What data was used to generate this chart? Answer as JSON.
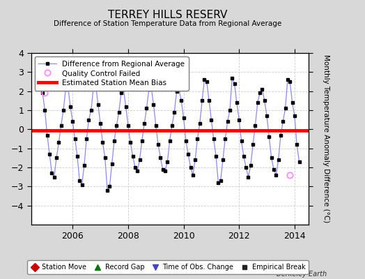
{
  "title": "TERREY HILLS RESERV",
  "subtitle": "Difference of Station Temperature Data from Regional Average",
  "ylabel": "Monthly Temperature Anomaly Difference (°C)",
  "xlim": [
    2004.5,
    2014.5
  ],
  "ylim": [
    -5,
    4
  ],
  "yticks": [
    -4,
    -3,
    -2,
    -1,
    0,
    1,
    2,
    3,
    4
  ],
  "xticks": [
    2006,
    2008,
    2010,
    2012,
    2014
  ],
  "bias_value": -0.05,
  "background_color": "#d8d8d8",
  "plot_bg_color": "#ffffff",
  "line_color": "#8888ff",
  "bias_color": "#ff0000",
  "marker_color": "#000000",
  "qc_fail_color": "#ff88ff",
  "berkeley_earth_text": "Berkeley Earth",
  "time_series": [
    2004.917,
    2005.0,
    2005.083,
    2005.167,
    2005.25,
    2005.333,
    2005.417,
    2005.5,
    2005.583,
    2005.667,
    2005.75,
    2005.833,
    2005.917,
    2006.0,
    2006.083,
    2006.167,
    2006.25,
    2006.333,
    2006.417,
    2006.5,
    2006.583,
    2006.667,
    2006.75,
    2006.833,
    2006.917,
    2007.0,
    2007.083,
    2007.167,
    2007.25,
    2007.333,
    2007.417,
    2007.5,
    2007.583,
    2007.667,
    2007.75,
    2007.833,
    2007.917,
    2008.0,
    2008.083,
    2008.167,
    2008.25,
    2008.333,
    2008.417,
    2008.5,
    2008.583,
    2008.667,
    2008.75,
    2008.833,
    2008.917,
    2009.0,
    2009.083,
    2009.167,
    2009.25,
    2009.333,
    2009.417,
    2009.5,
    2009.583,
    2009.667,
    2009.75,
    2009.833,
    2009.917,
    2010.0,
    2010.083,
    2010.167,
    2010.25,
    2010.333,
    2010.417,
    2010.5,
    2010.583,
    2010.667,
    2010.75,
    2010.833,
    2010.917,
    2011.0,
    2011.083,
    2011.167,
    2011.25,
    2011.333,
    2011.417,
    2011.5,
    2011.583,
    2011.667,
    2011.75,
    2011.833,
    2011.917,
    2012.0,
    2012.083,
    2012.167,
    2012.25,
    2012.333,
    2012.417,
    2012.5,
    2012.583,
    2012.667,
    2012.75,
    2012.833,
    2012.917,
    2013.0,
    2013.083,
    2013.167,
    2013.25,
    2013.333,
    2013.417,
    2013.5,
    2013.583,
    2013.667,
    2013.75,
    2013.833,
    2013.917,
    2014.0,
    2014.083,
    2014.167
  ],
  "values": [
    1.9,
    1.0,
    -0.3,
    -1.3,
    -2.3,
    -2.5,
    -1.5,
    -0.7,
    0.2,
    1.0,
    2.1,
    2.2,
    1.2,
    0.4,
    -0.5,
    -1.4,
    -2.7,
    -2.9,
    -1.9,
    -0.5,
    0.5,
    1.0,
    2.2,
    2.3,
    1.3,
    0.3,
    -0.7,
    -1.5,
    -3.2,
    -3.0,
    -1.8,
    -0.6,
    0.2,
    0.9,
    1.9,
    2.1,
    1.2,
    0.2,
    -0.7,
    -1.4,
    -2.0,
    -2.2,
    -1.6,
    -0.6,
    0.3,
    1.1,
    2.1,
    2.2,
    1.3,
    0.2,
    -0.8,
    -1.5,
    -2.1,
    -2.2,
    -1.7,
    -0.6,
    0.2,
    0.9,
    2.0,
    2.1,
    1.5,
    0.6,
    -0.6,
    -1.3,
    -2.0,
    -2.4,
    -1.6,
    -0.5,
    0.3,
    1.5,
    2.6,
    2.5,
    1.5,
    0.5,
    -0.5,
    -1.4,
    -2.8,
    -2.7,
    -1.6,
    -0.5,
    0.4,
    1.0,
    2.7,
    2.4,
    1.4,
    0.5,
    -0.6,
    -1.4,
    -2.0,
    -2.5,
    -1.9,
    -0.8,
    0.2,
    1.4,
    1.9,
    2.1,
    1.5,
    0.7,
    -0.4,
    -1.5,
    -2.1,
    -2.4,
    -1.6,
    -0.3,
    0.4,
    1.1,
    2.6,
    2.5,
    1.4,
    0.7,
    -0.8,
    -1.7
  ],
  "qc_fail_times": [
    2005.0,
    2013.833
  ],
  "qc_fail_values": [
    1.9,
    -2.4
  ]
}
